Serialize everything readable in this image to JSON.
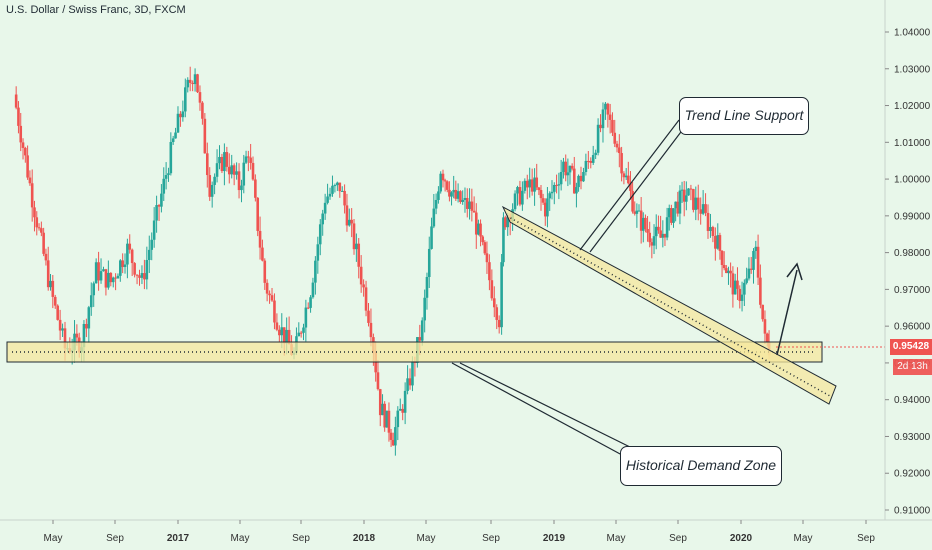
{
  "header": {
    "title": "U.S. Dollar / Swiss Franc, 3D, FXCM"
  },
  "price_axis": {
    "ticks": [
      "1.04000",
      "1.03000",
      "1.02000",
      "1.01000",
      "1.00000",
      "0.99000",
      "0.98000",
      "0.97000",
      "0.96000",
      "0.95000",
      "0.94000",
      "0.93000",
      "0.92000",
      "0.91000"
    ],
    "current_price": "0.95428",
    "countdown": "2d 13h"
  },
  "time_axis": {
    "ticks": [
      "May",
      "Sep",
      "2017",
      "May",
      "Sep",
      "2018",
      "May",
      "Sep",
      "2019",
      "May",
      "Sep",
      "2020",
      "May",
      "Sep"
    ],
    "years": [
      "2017",
      "2018",
      "2019",
      "2020"
    ]
  },
  "annotations": {
    "trend_label": "Trend Line Support",
    "zone_label": "Historical Demand Zone"
  },
  "colors": {
    "background": "#e8f7ea",
    "up_candle": "#26a69a",
    "down_candle": "#ef5350",
    "zone_fill": "#f5e79e",
    "zone_border": "#1f2a33",
    "price_line": "#ef5350"
  },
  "chart_data": {
    "type": "candlestick",
    "title": "U.S. Dollar / Swiss Franc, 3D, FXCM",
    "ylim": [
      0.905,
      1.045
    ],
    "x_ticks": [
      "May",
      "Sep",
      "2017",
      "May",
      "Sep",
      "2018",
      "May",
      "Sep",
      "2019",
      "May",
      "Sep",
      "2020",
      "May",
      "Sep"
    ],
    "series": [
      {
        "values": [
          [
            2016.05,
            1.023
          ],
          [
            2016.15,
            0.995
          ],
          [
            2016.25,
            0.97
          ],
          [
            2016.33,
            0.954
          ],
          [
            2016.42,
            0.956
          ],
          [
            2016.5,
            0.975
          ],
          [
            2016.58,
            0.972
          ],
          [
            2016.67,
            0.981
          ],
          [
            2016.75,
            0.972
          ],
          [
            2016.83,
            0.99
          ],
          [
            2016.92,
            1.01
          ],
          [
            2017.0,
            1.025
          ],
          [
            2017.04,
            1.03
          ],
          [
            2017.12,
            0.998
          ],
          [
            2017.2,
            1.006
          ],
          [
            2017.28,
            0.998
          ],
          [
            2017.33,
            1.008
          ],
          [
            2017.42,
            0.972
          ],
          [
            2017.5,
            0.96
          ],
          [
            2017.58,
            0.952
          ],
          [
            2017.67,
            0.97
          ],
          [
            2017.75,
            0.995
          ],
          [
            2017.83,
            0.998
          ],
          [
            2017.92,
            0.98
          ],
          [
            2018.0,
            0.96
          ],
          [
            2018.05,
            0.938
          ],
          [
            2018.12,
            0.93
          ],
          [
            2018.2,
            0.943
          ],
          [
            2018.28,
            0.96
          ],
          [
            2018.33,
            0.986
          ],
          [
            2018.38,
            1.003
          ],
          [
            2018.45,
            0.995
          ],
          [
            2018.55,
            0.992
          ],
          [
            2018.62,
            0.978
          ],
          [
            2018.7,
            0.962
          ],
          [
            2018.72,
            0.988
          ],
          [
            2018.8,
            0.995
          ],
          [
            2018.88,
            0.999
          ],
          [
            2018.95,
            0.992
          ],
          [
            2019.05,
            1.004
          ],
          [
            2019.12,
            0.998
          ],
          [
            2019.2,
            1.006
          ],
          [
            2019.28,
            1.018
          ],
          [
            2019.33,
            1.012
          ],
          [
            2019.38,
            1.002
          ],
          [
            2019.45,
            0.99
          ],
          [
            2019.52,
            0.985
          ],
          [
            2019.58,
            0.984
          ],
          [
            2019.65,
            0.992
          ],
          [
            2019.72,
            0.996
          ],
          [
            2019.8,
            0.992
          ],
          [
            2019.88,
            0.984
          ],
          [
            2019.95,
            0.974
          ],
          [
            2020.0,
            0.968
          ],
          [
            2020.05,
            0.972
          ],
          [
            2020.1,
            0.98
          ],
          [
            2020.15,
            0.956
          ],
          [
            2020.17,
            0.954
          ]
        ]
      }
    ],
    "annotations": [
      "Trend Line Support",
      "Historical Demand Zone"
    ]
  }
}
